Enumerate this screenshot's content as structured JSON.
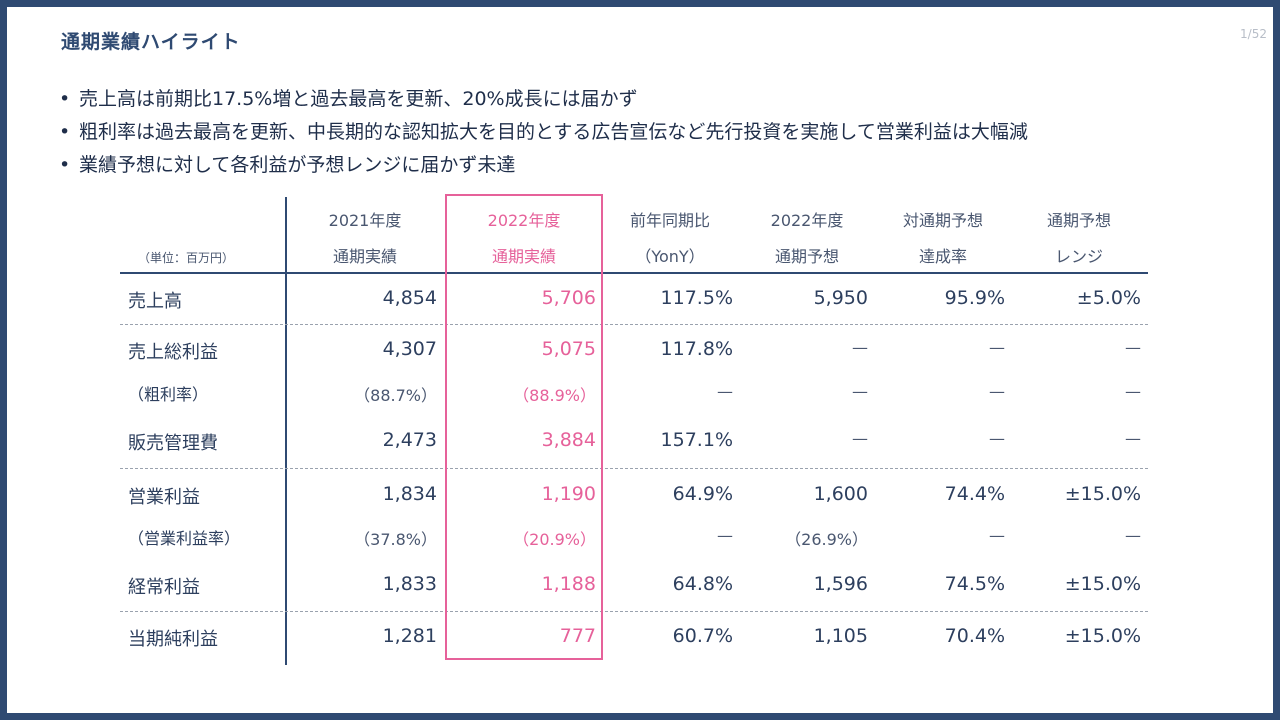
{
  "slide": {
    "title": "通期業績ハイライト",
    "page": "1/52",
    "bullets": [
      "売上高は前期比17.5%増と過去最高を更新、20%成長には届かず",
      "粗利率は過去最高を更新、中長期的な認知拡大を目的とする広告宣伝など先行投資を実施して営業利益は大幅減",
      "業績予想に対して各利益が予想レンジに届かず未達"
    ]
  },
  "table": {
    "unit": "（単位：百万円）",
    "headers": [
      {
        "line1": "2021年度",
        "line2": "通期実績"
      },
      {
        "line1": "2022年度",
        "line2": "通期実績"
      },
      {
        "line1": "前年同期比",
        "line2": "（YonY）"
      },
      {
        "line1": "2022年度",
        "line2": "通期予想"
      },
      {
        "line1": "対通期予想",
        "line2": "達成率"
      },
      {
        "line1": "通期予想",
        "line2": "レンジ"
      }
    ],
    "rows": [
      {
        "label": "売上高",
        "values": [
          "4,854",
          "5,706",
          "117.5%",
          "5,950",
          "95.9%",
          "±5.0%"
        ]
      },
      {
        "label": "売上総利益",
        "values": [
          "4,307",
          "5,075",
          "117.8%",
          "—",
          "—",
          "—"
        ]
      },
      {
        "label": "（粗利率）",
        "values": [
          "（88.7%）",
          "（88.9%）",
          "—",
          "—",
          "—",
          "—"
        ]
      },
      {
        "label": "販売管理費",
        "values": [
          "2,473",
          "3,884",
          "157.1%",
          "—",
          "—",
          "—"
        ]
      },
      {
        "label": "営業利益",
        "values": [
          "1,834",
          "1,190",
          "64.9%",
          "1,600",
          "74.4%",
          "±15.0%"
        ]
      },
      {
        "label": "（営業利益率）",
        "values": [
          "（37.8%）",
          "（20.9%）",
          "—",
          "（26.9%）",
          "—",
          "—"
        ]
      },
      {
        "label": "経常利益",
        "values": [
          "1,833",
          "1,188",
          "64.8%",
          "1,596",
          "74.5%",
          "±15.0%"
        ]
      },
      {
        "label": "当期純利益",
        "values": [
          "1,281",
          "777",
          "60.7%",
          "1,105",
          "70.4%",
          "±15.0%"
        ]
      }
    ]
  },
  "colors": {
    "frame": "#2f4a72",
    "text": "#2d3f5e",
    "highlight": "#e6619a",
    "separator": "#9aa2ae"
  }
}
